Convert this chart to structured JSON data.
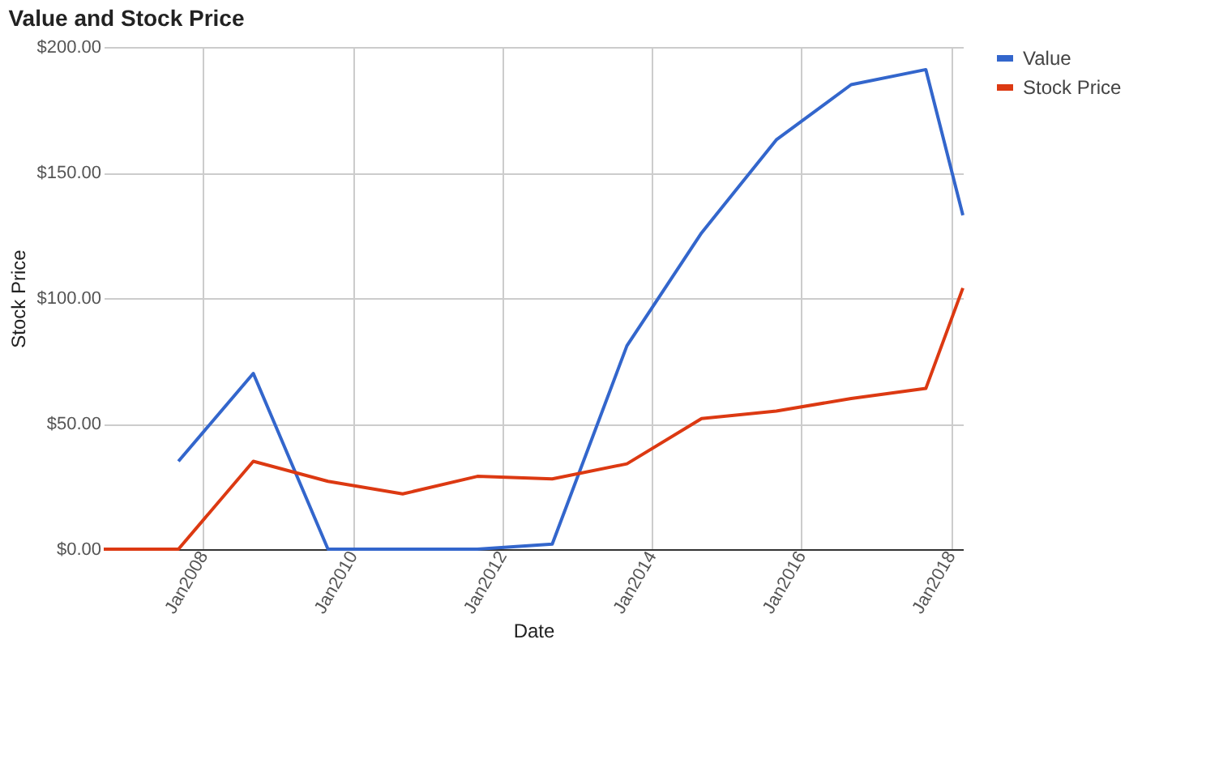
{
  "chart_data": {
    "type": "line",
    "title": "Value and Stock Price",
    "xlabel": "Date",
    "ylabel": "Stock Price",
    "x": [
      "2006-09",
      "2007-09",
      "2008-09",
      "2009-09",
      "2010-09",
      "2011-09",
      "2012-09",
      "2013-09",
      "2014-09",
      "2015-09",
      "2016-09",
      "2017-09",
      "2018-03"
    ],
    "series": [
      {
        "name": "Value",
        "color": "#3366cc",
        "values": [
          null,
          35,
          70,
          0,
          0,
          0,
          2,
          81,
          126,
          163,
          185,
          191,
          133
        ]
      },
      {
        "name": "Stock Price",
        "color": "#dc3912",
        "values": [
          0,
          0,
          35,
          27,
          22,
          29,
          28,
          34,
          52,
          55,
          60,
          64,
          104
        ]
      }
    ],
    "xlim": [
      "2006-09",
      "2018-03"
    ],
    "xticks": [
      {
        "value": "2008-01",
        "label": "Jan2008"
      },
      {
        "value": "2010-01",
        "label": "Jan2010"
      },
      {
        "value": "2012-01",
        "label": "Jan2012"
      },
      {
        "value": "2014-01",
        "label": "Jan2014"
      },
      {
        "value": "2016-01",
        "label": "Jan2016"
      },
      {
        "value": "2018-01",
        "label": "Jan2018"
      }
    ],
    "ylim": [
      0,
      200
    ],
    "yticks": [
      {
        "value": 0,
        "label": "$0.00"
      },
      {
        "value": 50,
        "label": "$50.00"
      },
      {
        "value": 100,
        "label": "$100.00"
      },
      {
        "value": 150,
        "label": "$150.00"
      },
      {
        "value": 200,
        "label": "$200.00"
      }
    ],
    "grid": true,
    "legend": "top right",
    "marker": "none",
    "line_style": "solid"
  }
}
